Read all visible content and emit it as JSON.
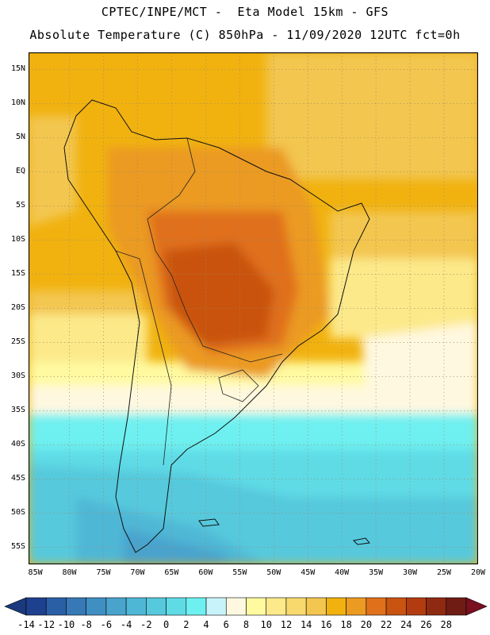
{
  "header": {
    "line1": "CPTEC/INPE/MCT -  Eta Model 15km - GFS",
    "line2": "Absolute Temperature (C) 850hPa - 11/09/2020 12UTC fct=0h"
  },
  "map": {
    "region": "South America",
    "variable": "Absolute Temperature (C) 850hPa",
    "lat_range": [
      -58,
      16
    ],
    "lon_range": [
      -86,
      -20
    ],
    "lat_ticks": [
      "15N",
      "10N",
      "5N",
      "EQ",
      "5S",
      "10S",
      "15S",
      "20S",
      "25S",
      "30S",
      "35S",
      "40S",
      "45S",
      "50S",
      "55S"
    ],
    "lon_ticks": [
      "85W",
      "80W",
      "75W",
      "70W",
      "65W",
      "60W",
      "55W",
      "50W",
      "45W",
      "40W",
      "35W",
      "30W",
      "25W",
      "20W"
    ]
  },
  "colorbar": {
    "labels": [
      "-14",
      "-12",
      "-10",
      "-8",
      "-6",
      "-4",
      "-2",
      "0",
      "2",
      "4",
      "6",
      "8",
      "10",
      "12",
      "14",
      "16",
      "18",
      "20",
      "22",
      "24",
      "26",
      "28"
    ],
    "colors": [
      "#1f3f8f",
      "#2a5fa6",
      "#3679b6",
      "#3f8fc3",
      "#49a3cd",
      "#4fb7d6",
      "#56c9dd",
      "#5fdbe6",
      "#6ef0f0",
      "#c8f3fa",
      "#fff8e0",
      "#fffaa0",
      "#fce98a",
      "#f8d96e",
      "#f3c650",
      "#f1b20f",
      "#eb9a22",
      "#e0701a",
      "#c95310",
      "#b23c10",
      "#8f2a12",
      "#6f1c14"
    ],
    "under_color": "#1a3a7d",
    "over_color": "#7a0f1f"
  }
}
